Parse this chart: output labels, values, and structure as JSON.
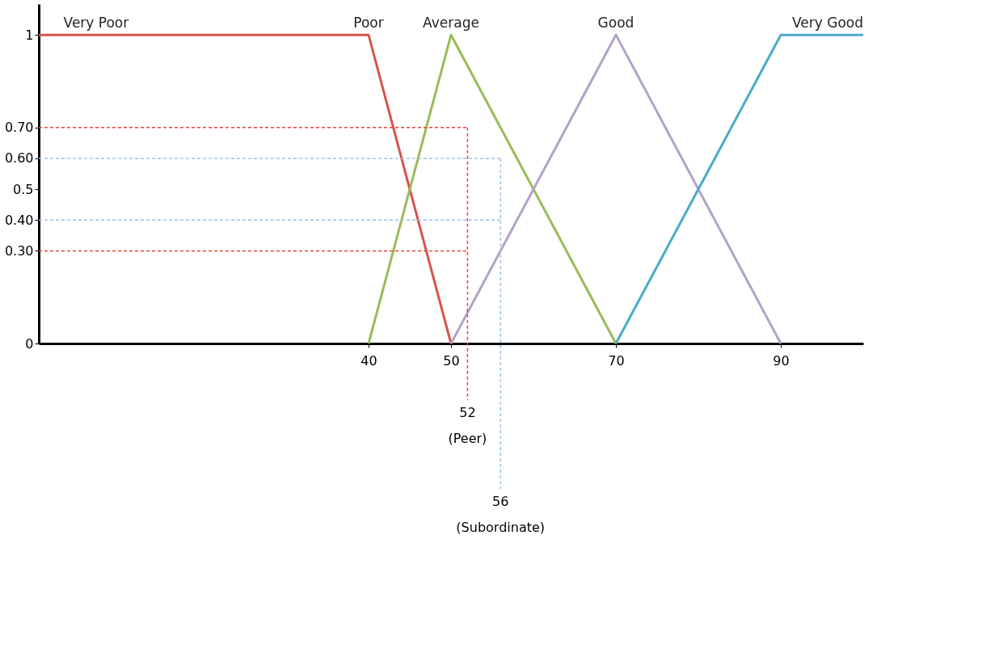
{
  "chart_data": {
    "type": "line",
    "xlim": [
      0,
      100
    ],
    "xticks": [
      40,
      50,
      70,
      90
    ],
    "ylim": [
      0,
      1.1
    ],
    "yticks": [
      0,
      {
        "value": 0.3,
        "label": "0.30"
      },
      {
        "value": 0.4,
        "label": "0.40"
      },
      0.5,
      {
        "value": 0.6,
        "label": "0.60"
      },
      {
        "value": 0.7,
        "label": "0.70"
      },
      1
    ],
    "grid": false,
    "legend": false,
    "marker": "none",
    "line_style": "solid",
    "series": [
      {
        "name": "Poor",
        "color": "#d9534f",
        "x": [
          0,
          40,
          50
        ],
        "values": [
          1,
          1,
          0
        ]
      },
      {
        "name": "Average",
        "color": "#9bbb59",
        "x": [
          40,
          50,
          70
        ],
        "values": [
          0,
          1,
          0
        ]
      },
      {
        "name": "Good",
        "color": "#b3a2c7",
        "x": [
          50,
          70,
          90
        ],
        "values": [
          0,
          1,
          0
        ]
      },
      {
        "name": "Very Good",
        "color": "#4bacc6",
        "x": [
          70,
          90,
          100
        ],
        "values": [
          0,
          1,
          1
        ]
      }
    ],
    "ref_lines": [
      {
        "axis": "y",
        "value": 0.7,
        "color": "#e8453c",
        "line_style": "dashed"
      },
      {
        "axis": "y",
        "value": 0.3,
        "color": "#e8453c",
        "line_style": "dashed"
      },
      {
        "axis": "y",
        "value": 0.6,
        "color": "#9dc3e6",
        "line_style": "dashed"
      },
      {
        "axis": "y",
        "value": 0.4,
        "color": "#9dc3e6",
        "line_style": "dashed"
      },
      {
        "axis": "x",
        "value": 52,
        "label": "52",
        "color": "#e8453c",
        "line_style": "dashed"
      },
      {
        "axis": "x",
        "value": 56,
        "label": "56",
        "color": "#9dc3e6",
        "line_style": "dashed"
      }
    ],
    "annotations": [
      {
        "text": "Very Poor",
        "x": 3,
        "y": 1
      },
      "(Peer)",
      "(Subordinate)"
    ]
  }
}
